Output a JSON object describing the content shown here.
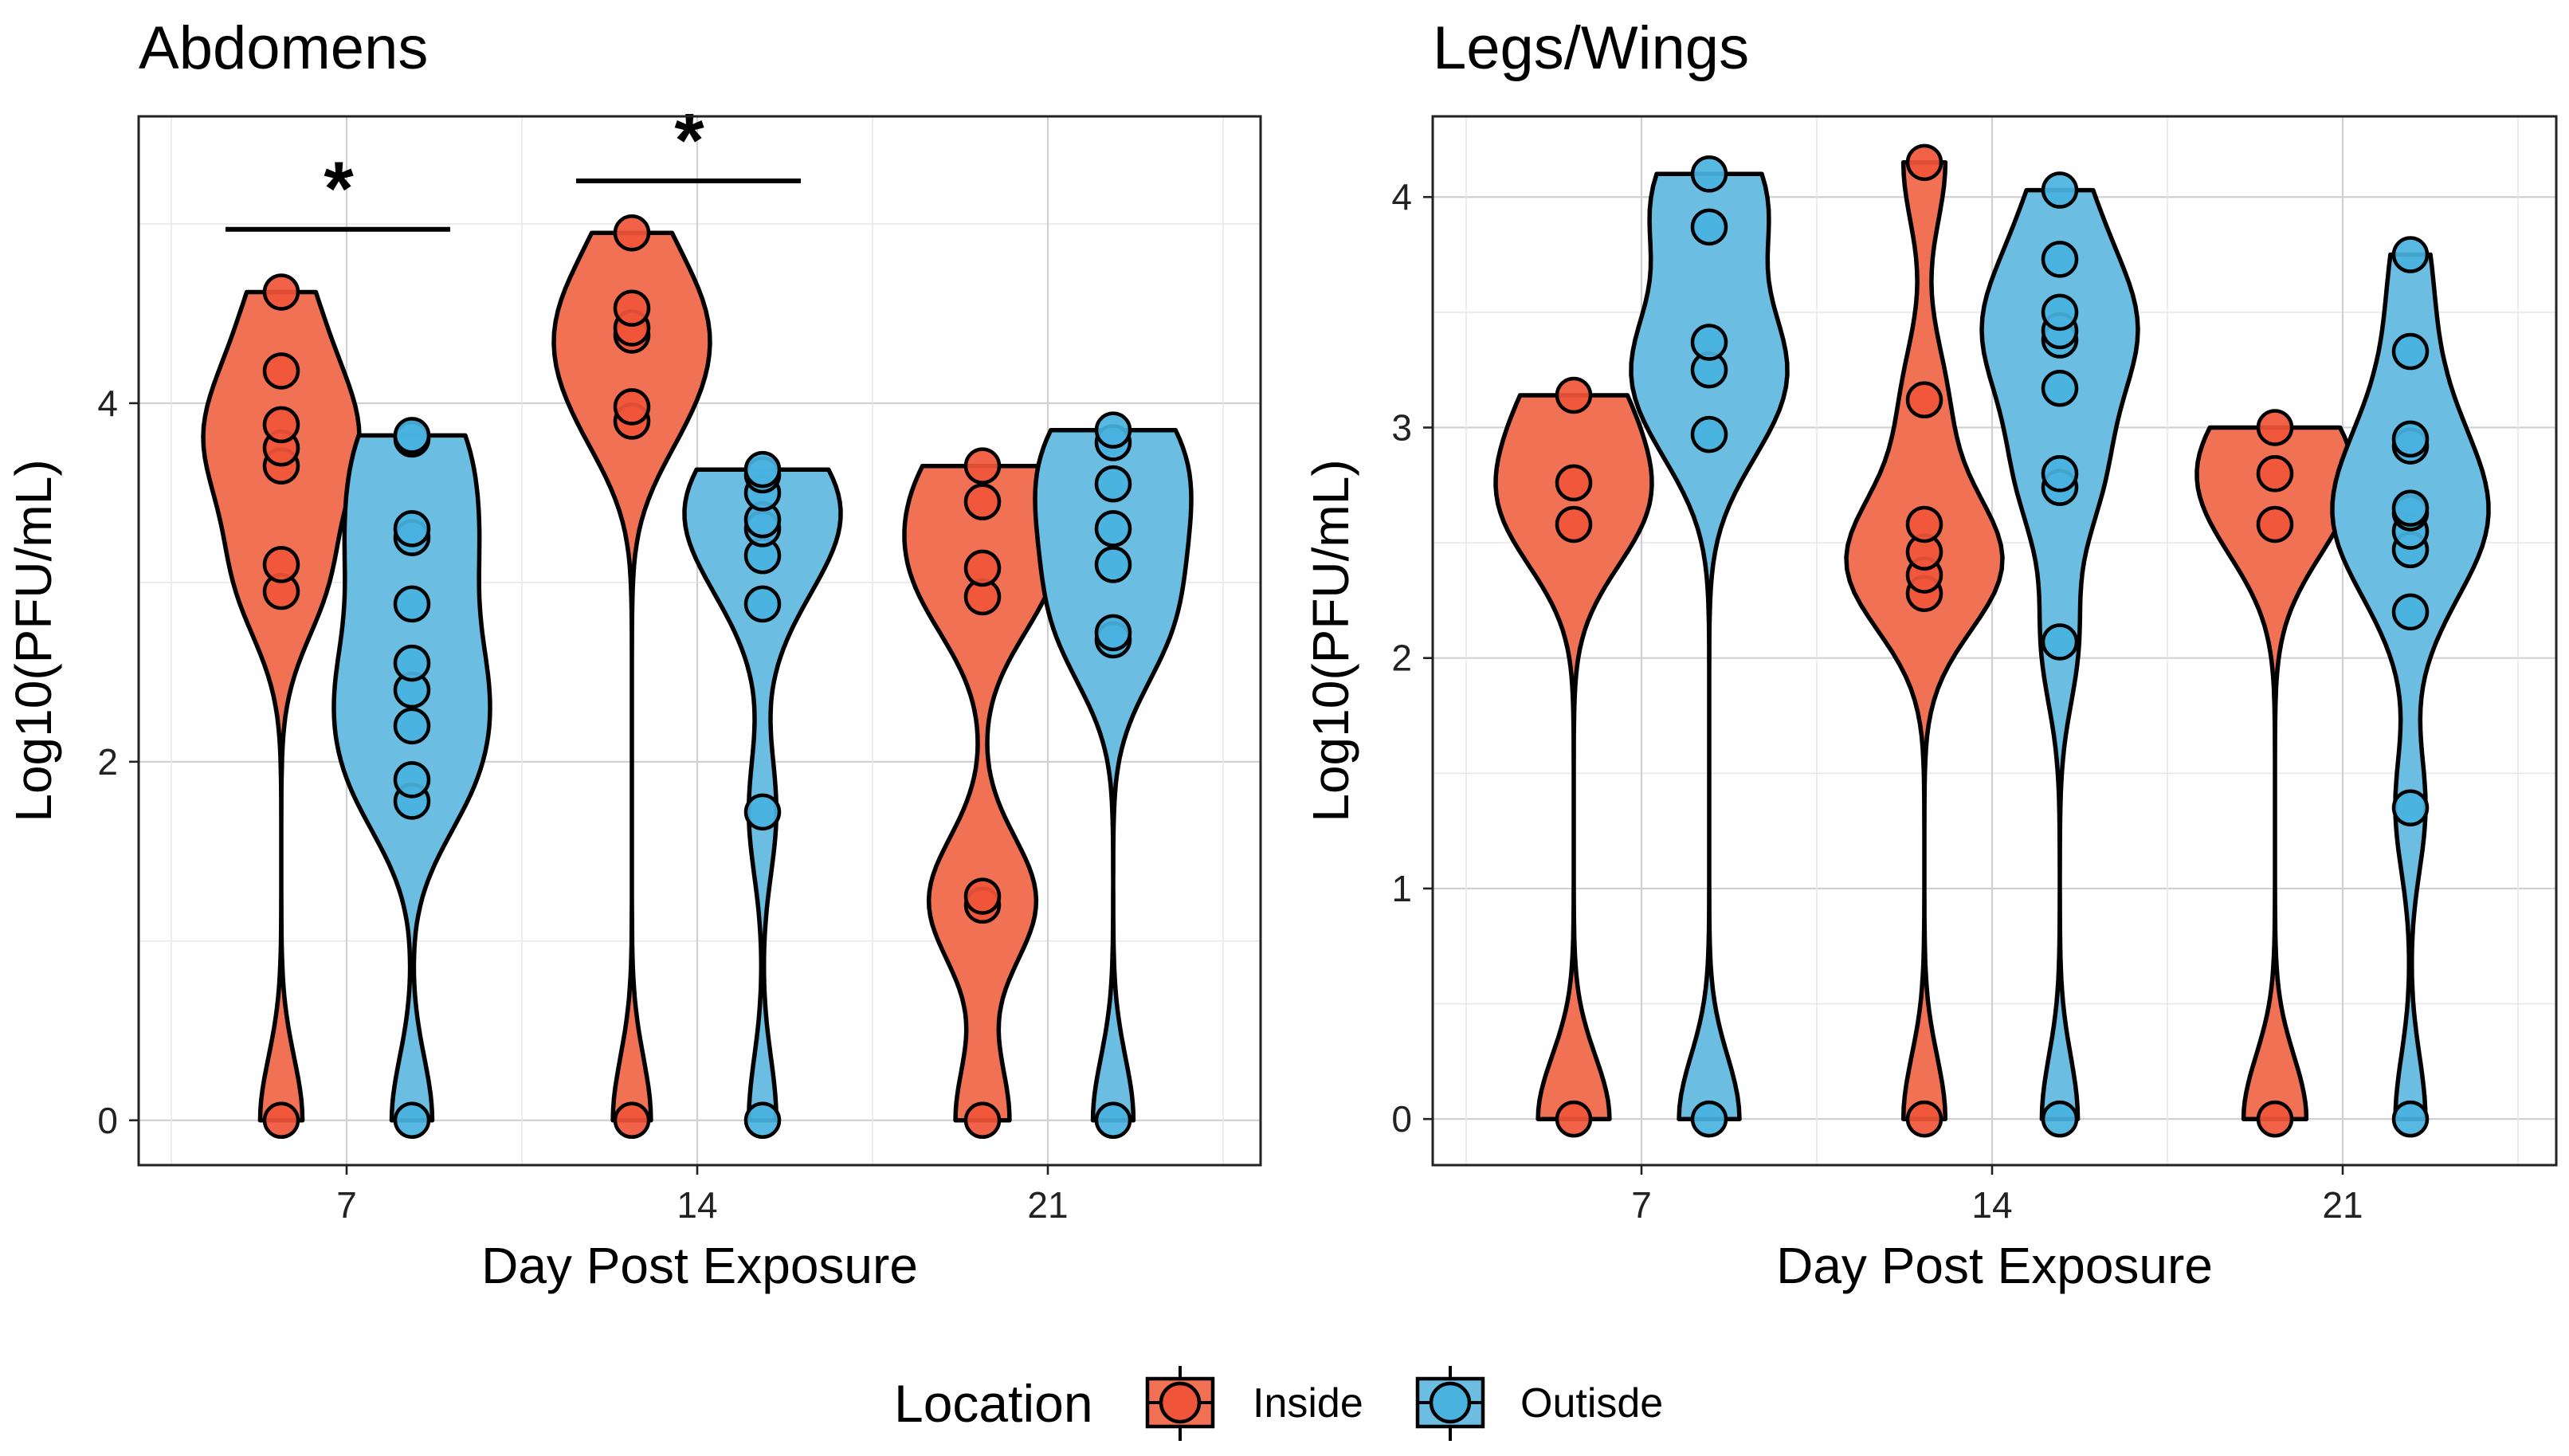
{
  "colors": {
    "inside": "#F07153",
    "outside": "#6BBDE2",
    "inside_point": "#F0553A",
    "outside_point": "#49B2DF"
  },
  "legend": {
    "title": "Location",
    "items": [
      {
        "key": "inside",
        "label": "Inside"
      },
      {
        "key": "outside",
        "label": "Outisde"
      }
    ]
  },
  "chart_data": [
    {
      "type": "violin",
      "title": "Abdomens",
      "xlabel": "Day Post Exposure",
      "ylabel": "Log10(PFU/mL)",
      "categories": [
        "7",
        "14",
        "21"
      ],
      "yticks": [
        0,
        2,
        4
      ],
      "ylim": [
        -0.25,
        5.6
      ],
      "grid": true,
      "significance": [
        {
          "category": "7",
          "label": "*",
          "y": 4.97
        },
        {
          "category": "14",
          "label": "*",
          "y": 5.24
        }
      ],
      "series": [
        {
          "name": "Inside",
          "key": "inside",
          "groups": [
            {
              "category": "7",
              "points": [
                0,
                2.95,
                3.1,
                3.65,
                3.75,
                3.88,
                4.18,
                4.62
              ]
            },
            {
              "category": "14",
              "points": [
                0,
                3.9,
                3.98,
                4.38,
                4.42,
                4.53,
                4.95
              ]
            },
            {
              "category": "21",
              "points": [
                0,
                1.2,
                1.25,
                2.92,
                3.08,
                3.45,
                3.65
              ]
            }
          ]
        },
        {
          "name": "Outisde",
          "key": "outside",
          "groups": [
            {
              "category": "7",
              "points": [
                0,
                1.78,
                1.9,
                2.2,
                2.4,
                2.55,
                2.88,
                3.25,
                3.3,
                3.8,
                3.82
              ]
            },
            {
              "category": "14",
              "points": [
                0,
                1.72,
                2.88,
                3.15,
                3.3,
                3.35,
                3.5,
                3.6,
                3.63
              ]
            },
            {
              "category": "21",
              "points": [
                0,
                2.68,
                2.72,
                3.1,
                3.3,
                3.55,
                3.78,
                3.85
              ]
            }
          ]
        }
      ]
    },
    {
      "type": "violin",
      "title": "Legs/Wings",
      "xlabel": "Day Post Exposure",
      "ylabel": "Log10(PFU/mL)",
      "categories": [
        "7",
        "14",
        "21"
      ],
      "yticks": [
        0,
        1,
        2,
        3,
        4
      ],
      "ylim": [
        -0.2,
        4.35
      ],
      "grid": true,
      "significance": [],
      "series": [
        {
          "name": "Inside",
          "key": "inside",
          "groups": [
            {
              "category": "7",
              "points": [
                0,
                2.58,
                2.76,
                3.14
              ]
            },
            {
              "category": "14",
              "points": [
                0,
                2.28,
                2.36,
                2.46,
                2.58,
                3.12,
                4.15
              ]
            },
            {
              "category": "21",
              "points": [
                0,
                2.58,
                2.8,
                3.0
              ]
            }
          ]
        },
        {
          "name": "Outisde",
          "key": "outside",
          "groups": [
            {
              "category": "7",
              "points": [
                0,
                2.97,
                3.25,
                3.37,
                3.87,
                4.1
              ]
            },
            {
              "category": "14",
              "points": [
                0,
                2.07,
                2.74,
                2.8,
                3.17,
                3.38,
                3.42,
                3.5,
                3.73,
                4.03
              ]
            },
            {
              "category": "21",
              "points": [
                0,
                1.35,
                2.2,
                2.47,
                2.55,
                2.63,
                2.65,
                2.92,
                2.95,
                3.33,
                3.75
              ]
            }
          ]
        }
      ]
    }
  ]
}
